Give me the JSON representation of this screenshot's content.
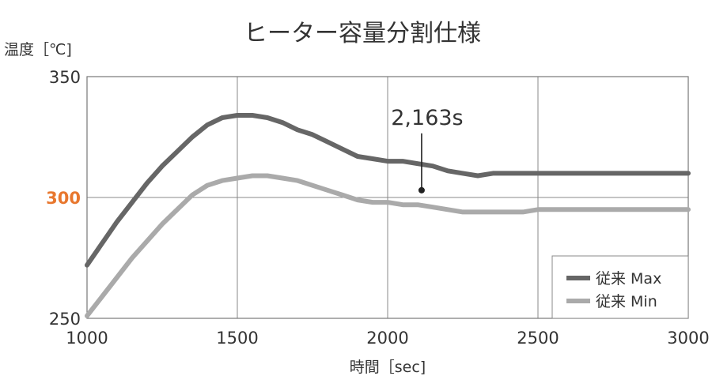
{
  "chart_data": {
    "type": "line",
    "title": "ヒーター容量分割仕様",
    "xlabel": "時間［sec]",
    "ylabel": "温度［℃]",
    "xlim": [
      1000,
      3000
    ],
    "ylim": [
      250,
      350
    ],
    "x_ticks": [
      "1000",
      "1500",
      "2000",
      "2500",
      "3000"
    ],
    "y_ticks": [
      "250",
      "300",
      "350"
    ],
    "highlight_tick": "300",
    "highlight_color": "#e8772e",
    "grid": true,
    "legend_position": "bottom-right",
    "annotation": {
      "label": "2,163s",
      "x": 2113,
      "y": 303
    },
    "series": [
      {
        "name": "従来 Max",
        "color": "#666666",
        "x": [
          1000,
          1050,
          1100,
          1150,
          1200,
          1250,
          1300,
          1350,
          1400,
          1450,
          1500,
          1550,
          1600,
          1650,
          1700,
          1750,
          1800,
          1850,
          1900,
          1950,
          2000,
          2050,
          2100,
          2150,
          2200,
          2250,
          2300,
          2350,
          2400,
          2450,
          2500,
          2550,
          2600,
          2650,
          2700,
          2750,
          2800,
          2850,
          2900,
          2950,
          3000
        ],
        "y": [
          272,
          281,
          290,
          298,
          306,
          313,
          319,
          325,
          330,
          333,
          334,
          334,
          333,
          331,
          328,
          326,
          323,
          320,
          317,
          316,
          315,
          315,
          314,
          313,
          311,
          310,
          309,
          310,
          310,
          310,
          310,
          310,
          310,
          310,
          310,
          310,
          310,
          310,
          310,
          310,
          310
        ]
      },
      {
        "name": "従来 Min",
        "color": "#aaaaaa",
        "x": [
          1000,
          1050,
          1100,
          1150,
          1200,
          1250,
          1300,
          1350,
          1400,
          1450,
          1500,
          1550,
          1600,
          1650,
          1700,
          1750,
          1800,
          1850,
          1900,
          1950,
          2000,
          2050,
          2100,
          2150,
          2200,
          2250,
          2300,
          2350,
          2400,
          2450,
          2500,
          2550,
          2600,
          2650,
          2700,
          2750,
          2800,
          2850,
          2900,
          2950,
          3000
        ],
        "y": [
          251,
          259,
          267,
          275,
          282,
          289,
          295,
          301,
          305,
          307,
          308,
          309,
          309,
          308,
          307,
          305,
          303,
          301,
          299,
          298,
          298,
          297,
          297,
          296,
          295,
          294,
          294,
          294,
          294,
          294,
          295,
          295,
          295,
          295,
          295,
          295,
          295,
          295,
          295,
          295,
          295
        ]
      }
    ]
  }
}
